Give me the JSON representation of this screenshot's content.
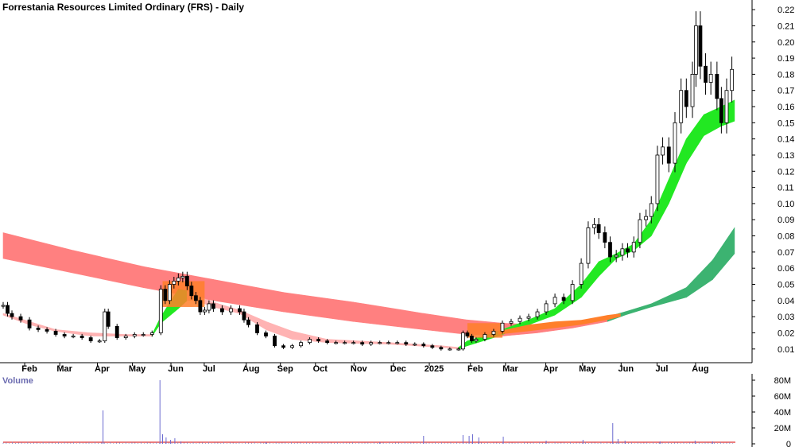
{
  "chart_data": {
    "type": "candlestick",
    "title": "Forrestania Resources Limited Ordinary (FRS) - Daily",
    "price_axis": {
      "ylim": [
        0.003,
        0.224
      ],
      "ticks": [
        "0.01",
        "0.02",
        "0.03",
        "0.04",
        "0.05",
        "0.06",
        "0.07",
        "0.08",
        "0.09",
        "0.10",
        "0.11",
        "0.12",
        "0.13",
        "0.14",
        "0.15",
        "0.16",
        "0.17",
        "0.18",
        "0.19",
        "0.20",
        "0.21",
        "0.22"
      ],
      "tick_values": [
        0.01,
        0.02,
        0.03,
        0.04,
        0.05,
        0.06,
        0.07,
        0.08,
        0.09,
        0.1,
        0.11,
        0.12,
        0.13,
        0.14,
        0.15,
        0.16,
        0.17,
        0.18,
        0.19,
        0.2,
        0.21,
        0.22
      ]
    },
    "x_axis": {
      "range": [
        0,
        64
      ],
      "labels": [
        {
          "text": "Feb",
          "t": 3.0
        },
        {
          "text": "Mar",
          "t": 7.0
        },
        {
          "text": "Apr",
          "t": 11.3
        },
        {
          "text": "May",
          "t": 15.3
        },
        {
          "text": "Jun",
          "t": 19.7
        },
        {
          "text": "Jul",
          "t": 23.5
        },
        {
          "text": "Aug",
          "t": 28.3
        },
        {
          "text": "Sep",
          "t": 32.2
        },
        {
          "text": "Oct",
          "t": 36.2
        },
        {
          "text": "Nov",
          "t": 40.6
        },
        {
          "text": "Dec",
          "t": 45.1
        },
        {
          "text": "2025",
          "t": 49.2
        },
        {
          "text": "Feb",
          "t": 53.9
        },
        {
          "text": "Mar",
          "t": 57.9
        },
        {
          "text": "Apr",
          "t": 62.5
        },
        {
          "text": "May",
          "t": 66.7
        },
        {
          "text": "Jun",
          "t": 71.1
        },
        {
          "text": "Jul",
          "t": 75.2
        },
        {
          "text": "Aug",
          "t": 79.6
        }
      ]
    },
    "price_series": [
      {
        "t": 0,
        "c": 0.037
      },
      {
        "t": 0.5,
        "c": 0.032
      },
      {
        "t": 1,
        "c": 0.03
      },
      {
        "t": 2,
        "c": 0.028
      },
      {
        "t": 3,
        "c": 0.023
      },
      {
        "t": 4,
        "c": 0.022
      },
      {
        "t": 5,
        "c": 0.021
      },
      {
        "t": 6,
        "c": 0.019
      },
      {
        "t": 7,
        "c": 0.018
      },
      {
        "t": 8,
        "c": 0.018
      },
      {
        "t": 9,
        "c": 0.017
      },
      {
        "t": 10,
        "c": 0.015
      },
      {
        "t": 11,
        "c": 0.015
      },
      {
        "t": 11.6,
        "c": 0.033
      },
      {
        "t": 12,
        "c": 0.024
      },
      {
        "t": 13,
        "c": 0.017
      },
      {
        "t": 14,
        "c": 0.018
      },
      {
        "t": 15,
        "c": 0.019
      },
      {
        "t": 16,
        "c": 0.019
      },
      {
        "t": 17,
        "c": 0.02
      },
      {
        "t": 18.0,
        "c": 0.047
      },
      {
        "t": 18.5,
        "c": 0.04
      },
      {
        "t": 19,
        "c": 0.05
      },
      {
        "t": 19.5,
        "c": 0.052
      },
      {
        "t": 20,
        "c": 0.054
      },
      {
        "t": 20.5,
        "c": 0.055
      },
      {
        "t": 21,
        "c": 0.049
      },
      {
        "t": 21.5,
        "c": 0.043
      },
      {
        "t": 22,
        "c": 0.04
      },
      {
        "t": 22.5,
        "c": 0.033
      },
      {
        "t": 23,
        "c": 0.034
      },
      {
        "t": 23.5,
        "c": 0.038
      },
      {
        "t": 24,
        "c": 0.035
      },
      {
        "t": 25,
        "c": 0.033
      },
      {
        "t": 26,
        "c": 0.035
      },
      {
        "t": 27,
        "c": 0.033
      },
      {
        "t": 27.5,
        "c": 0.028
      },
      {
        "t": 28,
        "c": 0.025
      },
      {
        "t": 29,
        "c": 0.02
      },
      {
        "t": 30,
        "c": 0.018
      },
      {
        "t": 31,
        "c": 0.012
      },
      {
        "t": 32,
        "c": 0.011
      },
      {
        "t": 33,
        "c": 0.012
      },
      {
        "t": 34,
        "c": 0.014
      },
      {
        "t": 35,
        "c": 0.016
      },
      {
        "t": 36,
        "c": 0.015
      },
      {
        "t": 37,
        "c": 0.014
      },
      {
        "t": 38,
        "c": 0.014
      },
      {
        "t": 39,
        "c": 0.014
      },
      {
        "t": 40,
        "c": 0.014
      },
      {
        "t": 41,
        "c": 0.013
      },
      {
        "t": 42,
        "c": 0.014
      },
      {
        "t": 43,
        "c": 0.014
      },
      {
        "t": 44,
        "c": 0.014
      },
      {
        "t": 45,
        "c": 0.014
      },
      {
        "t": 46,
        "c": 0.013
      },
      {
        "t": 47,
        "c": 0.013
      },
      {
        "t": 48,
        "c": 0.012
      },
      {
        "t": 49,
        "c": 0.011
      },
      {
        "t": 50,
        "c": 0.01
      },
      {
        "t": 51,
        "c": 0.01
      },
      {
        "t": 52,
        "c": 0.01
      },
      {
        "t": 52.5,
        "c": 0.02
      },
      {
        "t": 53,
        "c": 0.018
      },
      {
        "t": 53.5,
        "c": 0.015
      },
      {
        "t": 54,
        "c": 0.016
      },
      {
        "t": 55,
        "c": 0.019
      },
      {
        "t": 56,
        "c": 0.021
      },
      {
        "t": 57,
        "c": 0.026
      },
      {
        "t": 58,
        "c": 0.027
      },
      {
        "t": 59,
        "c": 0.029
      },
      {
        "t": 60,
        "c": 0.03
      },
      {
        "t": 61,
        "c": 0.033
      },
      {
        "t": 62,
        "c": 0.038
      },
      {
        "t": 63,
        "c": 0.042
      },
      {
        "t": 64,
        "c": 0.04
      },
      {
        "t": 65,
        "c": 0.05
      },
      {
        "t": 66,
        "c": 0.063
      },
      {
        "t": 66.8,
        "c": 0.085
      },
      {
        "t": 67.5,
        "c": 0.087
      },
      {
        "t": 68,
        "c": 0.082
      },
      {
        "t": 68.7,
        "c": 0.076
      },
      {
        "t": 69.3,
        "c": 0.067
      },
      {
        "t": 70,
        "c": 0.068
      },
      {
        "t": 70.7,
        "c": 0.072
      },
      {
        "t": 71.3,
        "c": 0.07
      },
      {
        "t": 72,
        "c": 0.076
      },
      {
        "t": 72.7,
        "c": 0.09
      },
      {
        "t": 73.4,
        "c": 0.092
      },
      {
        "t": 74,
        "c": 0.1
      },
      {
        "t": 74.7,
        "c": 0.13
      },
      {
        "t": 75.3,
        "c": 0.135
      },
      {
        "t": 76,
        "c": 0.125
      },
      {
        "t": 76.7,
        "c": 0.15
      },
      {
        "t": 77.4,
        "c": 0.17
      },
      {
        "t": 78,
        "c": 0.16
      },
      {
        "t": 78.7,
        "c": 0.18
      },
      {
        "t": 79.1,
        "c": 0.21
      },
      {
        "t": 79.6,
        "c": 0.185
      },
      {
        "t": 80.2,
        "c": 0.175
      },
      {
        "t": 80.8,
        "c": 0.18
      },
      {
        "t": 81.5,
        "c": 0.165
      },
      {
        "t": 82,
        "c": 0.15
      },
      {
        "t": 82.6,
        "c": 0.17
      },
      {
        "t": 83.2,
        "c": 0.183
      }
    ],
    "bands": [
      {
        "name": "",
        "color_up": "#22e822",
        "color_down": "#ffb3b3",
        "points": [
          {
            "t": 0,
            "hi": 0.032,
            "lo": 0.031,
            "c": "down"
          },
          {
            "t": 3,
            "hi": 0.027,
            "lo": 0.025,
            "c": "down"
          },
          {
            "t": 6,
            "hi": 0.022,
            "lo": 0.021,
            "c": "down"
          },
          {
            "t": 10,
            "hi": 0.02,
            "lo": 0.018,
            "c": "down"
          },
          {
            "t": 14,
            "hi": 0.019,
            "lo": 0.018,
            "c": "down"
          },
          {
            "t": 17,
            "hi": 0.019,
            "lo": 0.018,
            "c": "down"
          },
          {
            "t": 18,
            "hi": 0.03,
            "lo": 0.026,
            "c": "up"
          },
          {
            "t": 20,
            "hi": 0.047,
            "lo": 0.035,
            "c": "up"
          },
          {
            "t": 21,
            "hi": 0.046,
            "lo": 0.04,
            "c": "up"
          },
          {
            "t": 22,
            "hi": 0.043,
            "lo": 0.04,
            "c": "down"
          },
          {
            "t": 24,
            "hi": 0.039,
            "lo": 0.036,
            "c": "down"
          },
          {
            "t": 27,
            "hi": 0.034,
            "lo": 0.032,
            "c": "down"
          },
          {
            "t": 30,
            "hi": 0.027,
            "lo": 0.022,
            "c": "down"
          },
          {
            "t": 33,
            "hi": 0.021,
            "lo": 0.016,
            "c": "down"
          },
          {
            "t": 37,
            "hi": 0.016,
            "lo": 0.014,
            "c": "down"
          },
          {
            "t": 44,
            "hi": 0.014,
            "lo": 0.013,
            "c": "down"
          },
          {
            "t": 50,
            "hi": 0.012,
            "lo": 0.011,
            "c": "down"
          },
          {
            "t": 52,
            "hi": 0.011,
            "lo": 0.01,
            "c": "down"
          },
          {
            "t": 53,
            "hi": 0.015,
            "lo": 0.012,
            "c": "up"
          },
          {
            "t": 56,
            "hi": 0.02,
            "lo": 0.017,
            "c": "up"
          },
          {
            "t": 60,
            "hi": 0.028,
            "lo": 0.025,
            "c": "up"
          },
          {
            "t": 63,
            "hi": 0.035,
            "lo": 0.031,
            "c": "up"
          },
          {
            "t": 66,
            "hi": 0.05,
            "lo": 0.042,
            "c": "up"
          },
          {
            "t": 68,
            "hi": 0.064,
            "lo": 0.055,
            "c": "up"
          },
          {
            "t": 70,
            "hi": 0.069,
            "lo": 0.066,
            "c": "up"
          },
          {
            "t": 72,
            "hi": 0.075,
            "lo": 0.071,
            "c": "up"
          },
          {
            "t": 74,
            "hi": 0.09,
            "lo": 0.08,
            "c": "up"
          },
          {
            "t": 76,
            "hi": 0.115,
            "lo": 0.1,
            "c": "up"
          },
          {
            "t": 78,
            "hi": 0.14,
            "lo": 0.125,
            "c": "up"
          },
          {
            "t": 80,
            "hi": 0.155,
            "lo": 0.142,
            "c": "up"
          },
          {
            "t": 82,
            "hi": 0.16,
            "lo": 0.148,
            "c": "up"
          },
          {
            "t": 83.5,
            "hi": 0.164,
            "lo": 0.151,
            "c": "up"
          }
        ]
      },
      {
        "name": "",
        "color_up": "#3cb371",
        "color_down": "#ff8080",
        "points": [
          {
            "t": 0,
            "hi": 0.082,
            "lo": 0.066,
            "c": "down"
          },
          {
            "t": 8,
            "hi": 0.071,
            "lo": 0.057,
            "c": "down"
          },
          {
            "t": 16,
            "hi": 0.061,
            "lo": 0.048,
            "c": "down"
          },
          {
            "t": 24,
            "hi": 0.053,
            "lo": 0.04,
            "c": "down"
          },
          {
            "t": 32,
            "hi": 0.045,
            "lo": 0.033,
            "c": "down"
          },
          {
            "t": 40,
            "hi": 0.039,
            "lo": 0.027,
            "c": "down"
          },
          {
            "t": 48,
            "hi": 0.032,
            "lo": 0.022,
            "c": "down"
          },
          {
            "t": 53,
            "hi": 0.028,
            "lo": 0.019,
            "c": "down"
          },
          {
            "t": 57,
            "hi": 0.026,
            "lo": 0.018,
            "c": "down"
          },
          {
            "t": 61,
            "hi": 0.025,
            "lo": 0.02,
            "c": "down"
          },
          {
            "t": 65,
            "hi": 0.027,
            "lo": 0.023,
            "c": "down"
          },
          {
            "t": 69,
            "hi": 0.03,
            "lo": 0.027,
            "c": "down"
          },
          {
            "t": 71,
            "hi": 0.033,
            "lo": 0.031,
            "c": "up"
          },
          {
            "t": 74,
            "hi": 0.038,
            "lo": 0.036,
            "c": "up"
          },
          {
            "t": 78,
            "hi": 0.048,
            "lo": 0.042,
            "c": "up"
          },
          {
            "t": 81,
            "hi": 0.065,
            "lo": 0.053,
            "c": "up"
          },
          {
            "t": 83.5,
            "hi": 0.085,
            "lo": 0.069,
            "c": "up"
          }
        ]
      }
    ],
    "volume": {
      "title": "Volume",
      "ylim": [
        0,
        88
      ],
      "ticks": [
        "0",
        "20M",
        "40M",
        "60M",
        "80M"
      ],
      "tick_values": [
        0,
        20,
        40,
        60,
        80
      ],
      "spikes_millions": [
        {
          "t": 11.4,
          "v": 42
        },
        {
          "t": 17.9,
          "v": 80
        },
        {
          "t": 18.2,
          "v": 12
        },
        {
          "t": 18.6,
          "v": 8
        },
        {
          "t": 19.1,
          "v": 5
        },
        {
          "t": 19.6,
          "v": 7
        },
        {
          "t": 20.3,
          "v": 3
        },
        {
          "t": 30,
          "v": 2
        },
        {
          "t": 43,
          "v": 2
        },
        {
          "t": 48,
          "v": 10
        },
        {
          "t": 52.5,
          "v": 11
        },
        {
          "t": 53.2,
          "v": 10
        },
        {
          "t": 53.6,
          "v": 12
        },
        {
          "t": 54.3,
          "v": 8
        },
        {
          "t": 57.1,
          "v": 9
        },
        {
          "t": 62,
          "v": 4
        },
        {
          "t": 66.2,
          "v": 5
        },
        {
          "t": 69.6,
          "v": 26
        },
        {
          "t": 70.2,
          "v": 6
        },
        {
          "t": 71,
          "v": 4
        },
        {
          "t": 75,
          "v": 3
        },
        {
          "t": 79,
          "v": 4
        },
        {
          "t": 81,
          "v": 3
        }
      ],
      "baseline_millions": 2
    }
  }
}
